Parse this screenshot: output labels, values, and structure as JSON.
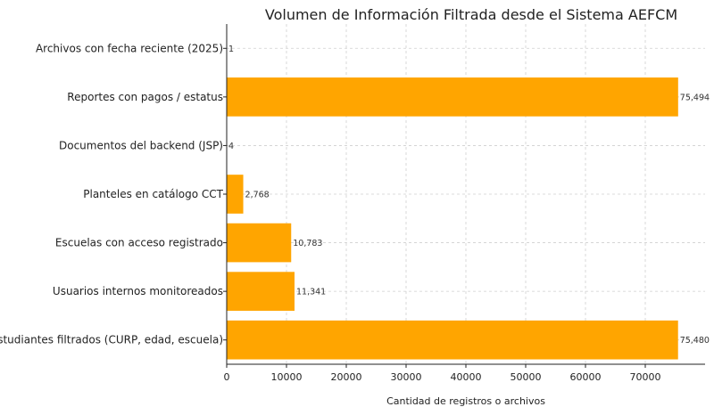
{
  "chart_data": {
    "type": "bar",
    "orientation": "horizontal",
    "title": "Volumen de Información Filtrada desde el Sistema AEFCM",
    "xlabel": "Cantidad de registros o archivos",
    "ylabel": "",
    "xlim": [
      0,
      80000
    ],
    "xticks": [
      0,
      10000,
      20000,
      30000,
      40000,
      50000,
      60000,
      70000
    ],
    "xtick_labels": [
      "0",
      "10000",
      "20000",
      "30000",
      "40000",
      "50000",
      "60000",
      "70000"
    ],
    "grid": true,
    "bar_color": "#FFA500",
    "categories": [
      "Archivos con fecha reciente (2025)",
      "Reportes con pagos / estatus",
      "Documentos del backend (JSP)",
      "Planteles en catálogo CCT",
      "Escuelas con acceso registrado",
      "Usuarios internos monitoreados",
      "Estudiantes filtrados (CURP, edad, escuela)"
    ],
    "values": [
      1,
      75494,
      4,
      2768,
      10783,
      11341,
      75480
    ],
    "value_labels": [
      "1",
      "75,494",
      "4",
      "2,768",
      "10,783",
      "11,341",
      "75,480"
    ]
  }
}
